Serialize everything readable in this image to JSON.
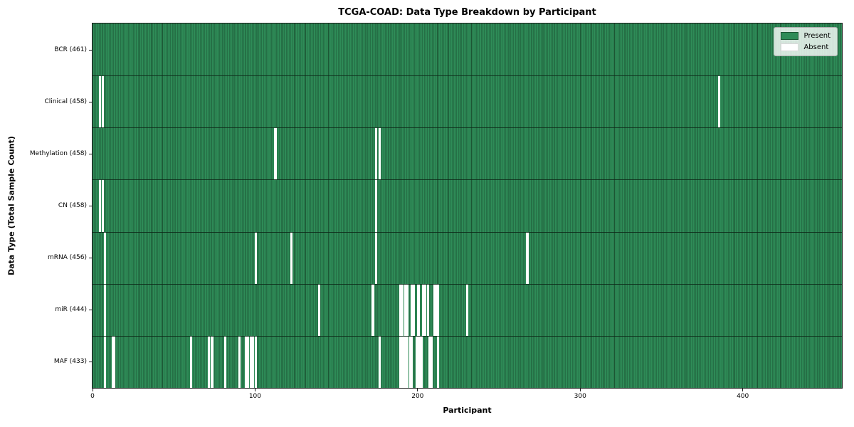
{
  "chart_data": {
    "type": "heatmap",
    "title": "TCGA-COAD: Data Type Breakdown by Participant",
    "xlabel": "Participant",
    "ylabel": "Data Type (Total Sample Count)",
    "n_participants": 461,
    "x_ticks": [
      0,
      100,
      200,
      300,
      400
    ],
    "legend": [
      {
        "label": "Present",
        "color": "#2e8b57"
      },
      {
        "label": "Absent",
        "color": "#ffffff"
      }
    ],
    "legend_position": "upper right",
    "rows": [
      {
        "name": "BCR",
        "total": 461,
        "label": "BCR (461)",
        "absent": []
      },
      {
        "name": "Clinical",
        "total": 458,
        "label": "Clinical (458)",
        "absent": [
          4,
          6,
          385
        ]
      },
      {
        "name": "Methylation",
        "total": 458,
        "label": "Methylation (458)",
        "absent": [
          112,
          174,
          176
        ]
      },
      {
        "name": "CN",
        "total": 458,
        "label": "CN (458)",
        "absent": [
          4,
          6,
          174
        ]
      },
      {
        "name": "mRNA",
        "total": 456,
        "label": "mRNA (456)",
        "absent": [
          7,
          100,
          122,
          174,
          267
        ]
      },
      {
        "name": "miR",
        "total": 444,
        "label": "miR (444)",
        "absent": [
          7,
          139,
          172,
          189,
          190,
          192,
          193,
          196,
          197,
          200,
          203,
          204,
          206,
          210,
          211,
          212,
          230
        ]
      },
      {
        "name": "MAF",
        "total": 433,
        "label": "MAF (433)",
        "absent": [
          7,
          12,
          13,
          60,
          71,
          73,
          81,
          90,
          94,
          95,
          97,
          98,
          100,
          176,
          189,
          190,
          191,
          192,
          193,
          195,
          196,
          199,
          200,
          201,
          202,
          207,
          208,
          212
        ]
      }
    ],
    "colors": {
      "present": "#2e8b57",
      "present_edge": "#1c5634",
      "absent": "#ffffff",
      "axis": "#1a1a1a"
    }
  }
}
